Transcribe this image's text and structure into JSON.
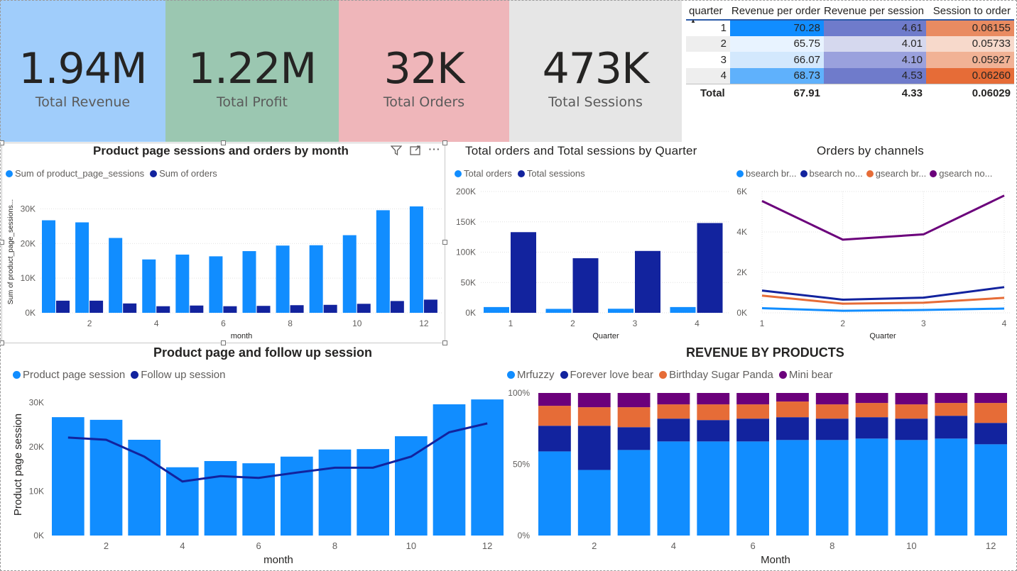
{
  "kpis": [
    {
      "value": "1.94M",
      "label": "Total Revenue",
      "bg": "#a0cdfb"
    },
    {
      "value": "1.22M",
      "label": "Total Profit",
      "bg": "#9bc7b1"
    },
    {
      "value": "32K",
      "label": "Total Orders",
      "bg": "#efb6ba"
    },
    {
      "value": "473K",
      "label": "Total Sessions",
      "bg": "#e6e6e6"
    }
  ],
  "matrix": {
    "headers": [
      "quarter",
      "Revenue per order",
      "Revenue per session",
      "Session to order"
    ],
    "rows": [
      {
        "q": "1",
        "rpo": "70.28",
        "rps": "4.61",
        "sto": "0.06155"
      },
      {
        "q": "2",
        "rpo": "65.75",
        "rps": "4.01",
        "sto": "0.05733"
      },
      {
        "q": "3",
        "rpo": "66.07",
        "rps": "4.10",
        "sto": "0.05927"
      },
      {
        "q": "4",
        "rpo": "68.73",
        "rps": "4.53",
        "sto": "0.06260"
      }
    ],
    "total": {
      "label": "Total",
      "rpo": "67.91",
      "rps": "4.33",
      "sto": "0.06029"
    }
  },
  "colors": {
    "light_blue": "#118dff",
    "dark_blue": "#12239e",
    "orange": "#e66c37",
    "purple": "#6b007b"
  },
  "chart1": {
    "title": "Product page sessions and orders by month",
    "legend": [
      "Sum of product_page_sessions",
      "Sum of orders"
    ],
    "ylabel": "Sum of product_page_sessions...",
    "xlabel": "month",
    "icons": [
      "filter-icon",
      "focus-mode-icon",
      "more-options-icon"
    ]
  },
  "chart2": {
    "title": "Total orders and Total sessions by Quarter",
    "legend": [
      "Total orders",
      "Total sessions"
    ],
    "xlabel": "Quarter"
  },
  "chart3": {
    "title": "Orders by channels",
    "legend": [
      "bsearch br...",
      "bsearch no...",
      "gsearch br...",
      "gsearch no..."
    ],
    "xlabel": "Quarter"
  },
  "chart4": {
    "title": "Product page and follow up session",
    "legend": [
      "Product page session",
      "Follow up session"
    ],
    "ylabel": "Product page session",
    "xlabel": "month"
  },
  "chart5": {
    "title": "REVENUE BY PRODUCTS",
    "legend": [
      "Mrfuzzy",
      "Forever love bear",
      "Birthday Sugar Panda",
      "Mini bear"
    ],
    "xlabel": "Month"
  },
  "chart_data": [
    {
      "type": "bar",
      "title": "Product page sessions and orders by month",
      "xlabel": "month",
      "ylabel": "Sum of product_page_sessions...",
      "categories": [
        1,
        2,
        3,
        4,
        5,
        6,
        7,
        8,
        9,
        10,
        11,
        12
      ],
      "x_tick_labels": [
        "2",
        "4",
        "6",
        "8",
        "10",
        "12"
      ],
      "y_tick_labels": [
        "0K",
        "10K",
        "20K",
        "30K"
      ],
      "ylim": [
        0,
        35000
      ],
      "series": [
        {
          "name": "Sum of product_page_sessions",
          "values": [
            26700,
            26100,
            21600,
            15400,
            16800,
            16300,
            17800,
            19400,
            19500,
            22400,
            29600,
            30700
          ]
        },
        {
          "name": "Sum of orders",
          "values": [
            3500,
            3500,
            2700,
            1900,
            2100,
            1900,
            2000,
            2200,
            2300,
            2600,
            3400,
            3800
          ]
        }
      ]
    },
    {
      "type": "bar",
      "title": "Total orders and Total sessions by Quarter",
      "xlabel": "Quarter",
      "categories": [
        "1",
        "2",
        "3",
        "4"
      ],
      "y_tick_labels": [
        "0K",
        "50K",
        "100K",
        "150K",
        "200K"
      ],
      "ylim": [
        0,
        200000
      ],
      "series": [
        {
          "name": "Total orders",
          "values": [
            9500,
            6500,
            6700,
            9500
          ]
        },
        {
          "name": "Total sessions",
          "values": [
            133000,
            90000,
            102000,
            148000
          ]
        }
      ]
    },
    {
      "type": "line",
      "title": "Orders by channels",
      "xlabel": "Quarter",
      "categories": [
        "1",
        "2",
        "3",
        "4"
      ],
      "y_tick_labels": [
        "0K",
        "2K",
        "4K",
        "6K"
      ],
      "ylim": [
        0,
        6000
      ],
      "series": [
        {
          "name": "bsearch br...",
          "values": [
            230,
            100,
            140,
            210
          ]
        },
        {
          "name": "bsearch no...",
          "values": [
            1100,
            650,
            750,
            1270
          ]
        },
        {
          "name": "gsearch br...",
          "values": [
            850,
            450,
            500,
            740
          ]
        },
        {
          "name": "gsearch no...",
          "values": [
            5530,
            3620,
            3880,
            5800
          ]
        }
      ]
    },
    {
      "type": "bar",
      "title": "Product page and follow up session",
      "xlabel": "month",
      "ylabel": "Product page session",
      "categories": [
        1,
        2,
        3,
        4,
        5,
        6,
        7,
        8,
        9,
        10,
        11,
        12
      ],
      "x_tick_labels": [
        "2",
        "4",
        "6",
        "8",
        "10",
        "12"
      ],
      "y_tick_labels": [
        "0K",
        "10K",
        "20K",
        "30K"
      ],
      "ylim": [
        0,
        32000
      ],
      "series": [
        {
          "name": "Product page session",
          "type": "bar",
          "values": [
            26700,
            26100,
            21600,
            15400,
            16800,
            16300,
            17800,
            19400,
            19500,
            22400,
            29600,
            30700
          ]
        },
        {
          "name": "Follow up session",
          "type": "line",
          "values": [
            22100,
            21600,
            17800,
            12200,
            13400,
            13000,
            14200,
            15300,
            15300,
            17800,
            23300,
            25300
          ]
        }
      ]
    },
    {
      "type": "bar",
      "stacked": "100%",
      "title": "REVENUE BY PRODUCTS",
      "xlabel": "Month",
      "categories": [
        1,
        2,
        3,
        4,
        5,
        6,
        7,
        8,
        9,
        10,
        11,
        12
      ],
      "x_tick_labels": [
        "2",
        "4",
        "6",
        "8",
        "10",
        "12"
      ],
      "y_tick_labels": [
        "0%",
        "50%",
        "100%"
      ],
      "ylim": [
        0,
        100
      ],
      "series": [
        {
          "name": "Mrfuzzy",
          "values": [
            59,
            46,
            60,
            66,
            66,
            66,
            67,
            67,
            68,
            67,
            68,
            64
          ]
        },
        {
          "name": "Forever love bear",
          "values": [
            18,
            31,
            16,
            16,
            15,
            16,
            16,
            15,
            15,
            15,
            16,
            15
          ]
        },
        {
          "name": "Birthday Sugar Panda",
          "values": [
            14,
            13,
            14,
            10,
            11,
            10,
            11,
            10,
            10,
            10,
            9,
            14
          ]
        },
        {
          "name": "Mini bear",
          "values": [
            9,
            10,
            10,
            8,
            8,
            8,
            6,
            8,
            7,
            8,
            7,
            7
          ]
        }
      ]
    }
  ]
}
